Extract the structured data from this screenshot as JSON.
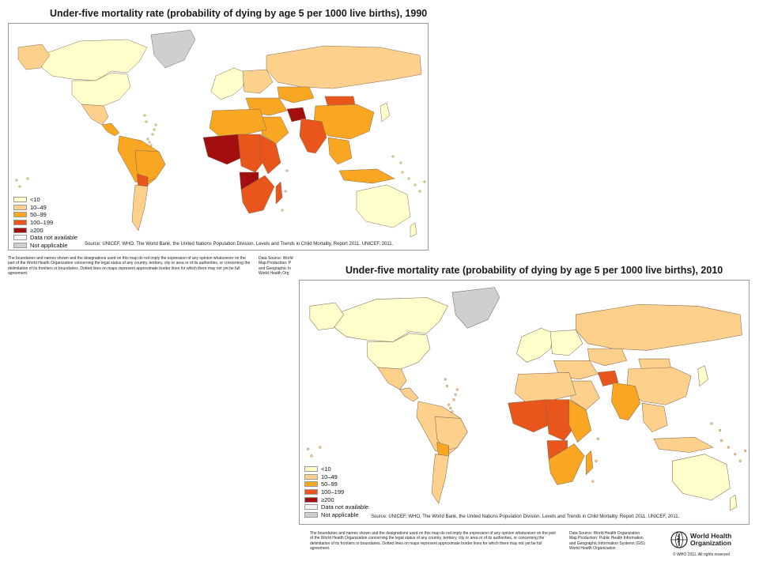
{
  "colors": {
    "lt10": "#ffffcc",
    "c10_49": "#fdd08b",
    "c50_99": "#f9a623",
    "c100_199": "#e8561b",
    "ge200": "#a30f0f",
    "na": "#f4f4f4",
    "notapplicable": "#cfcfcf",
    "border": "#7f6a55",
    "water": "#ffffff"
  },
  "legend": [
    {
      "label": "<10",
      "color_key": "lt10"
    },
    {
      "label": "10–49",
      "color_key": "c10_49"
    },
    {
      "label": "50–99",
      "color_key": "c50_99"
    },
    {
      "label": "100–199",
      "color_key": "c100_199"
    },
    {
      "label": "≥200",
      "color_key": "ge200"
    },
    {
      "label": "Data not available",
      "color_key": "na"
    },
    {
      "label": "Not applicable",
      "color_key": "notapplicable"
    }
  ],
  "map1990": {
    "title": "Under-five mortality rate (probability of dying by age 5 per 1000 live births), 1990",
    "source": "Source: UNICEF, WHO, The World Bank, the United Nations Population Division. Levels and Trends in Child Mortality. Report 2011. UNICEF, 2011.",
    "regions": {
      "north_america": "c10_49",
      "canada": "lt10",
      "usa": "lt10",
      "mexico": "c10_49",
      "central_america": "c50_99",
      "south_america": "c50_99",
      "brazil": "c50_99",
      "argentina": "c10_49",
      "bolivia": "c100_199",
      "greenland": "notapplicable",
      "europe_west": "lt10",
      "europe_east": "c10_49",
      "russia": "c10_49",
      "north_africa": "c50_99",
      "west_africa": "ge200",
      "central_africa": "c100_199",
      "east_africa": "c100_199",
      "south_africa_region": "c100_199",
      "angola": "ge200",
      "madagascar": "c100_199",
      "middle_east": "c50_99",
      "arabia": "c50_99",
      "afghanistan": "ge200",
      "india": "c100_199",
      "china": "c50_99",
      "mongolia": "c100_199",
      "kazakhstan": "c50_99",
      "southeast_asia": "c50_99",
      "indonesia": "c50_99",
      "japan": "lt10",
      "australia": "lt10",
      "nz": "lt10"
    },
    "disclaimer": "The boundaries and names shown and the designations used on this map do not imply the expression of any opinion whatsoever on the part of the World Health Organization concerning the legal status of any country, territory, city or area or of its authorities, or concerning the delimitation of its frontiers or boundaries. Dotted lines on maps represent approximate border lines for which there may not yet be full agreement.",
    "datasource_lines": [
      "Data Source: World",
      "Map Production: P",
      "and Geographic In",
      "World Health Org"
    ]
  },
  "map2010": {
    "title": "Under-five mortality rate (probability of dying by age 5 per 1000 live births), 2010",
    "source": "Source: UNICEF, WHO, The World Bank, the United Nations Population Division. Levels and Trends in Child Mortality. Report 2011. UNICEF, 2011.",
    "regions": {
      "north_america": "lt10",
      "canada": "lt10",
      "usa": "lt10",
      "mexico": "c10_49",
      "central_america": "c10_49",
      "south_america": "c10_49",
      "brazil": "c10_49",
      "argentina": "c10_49",
      "bolivia": "c50_99",
      "greenland": "notapplicable",
      "europe_west": "lt10",
      "europe_east": "lt10",
      "russia": "c10_49",
      "north_africa": "c10_49",
      "west_africa": "c100_199",
      "central_africa": "c100_199",
      "east_africa": "c50_99",
      "south_africa_region": "c50_99",
      "angola": "c100_199",
      "madagascar": "c50_99",
      "middle_east": "c10_49",
      "arabia": "c10_49",
      "afghanistan": "c100_199",
      "india": "c50_99",
      "china": "c10_49",
      "mongolia": "c10_49",
      "kazakhstan": "c10_49",
      "southeast_asia": "c10_49",
      "indonesia": "c10_49",
      "japan": "lt10",
      "australia": "lt10",
      "nz": "lt10"
    },
    "disclaimer": "The boundaries and names shown and the designations used on this map do not imply the expression of any opinion whatsoever on the part of the World Health Organization concerning the legal status of any country, territory, city or area or of its authorities, or concerning the delimitation of its frontiers or boundaries. Dotted lines on maps represent approximate border lines for which there may not yet be full agreement.",
    "datasource_lines": [
      "Data Source: World Health Organization",
      "Map Production: Public Health Information",
      "and Geographic Information Systems (GIS)",
      "World Health Organization"
    ],
    "who_logo_lines": [
      "World Health",
      "Organization"
    ],
    "copyright": "© WHO 2011. All rights reserved"
  }
}
